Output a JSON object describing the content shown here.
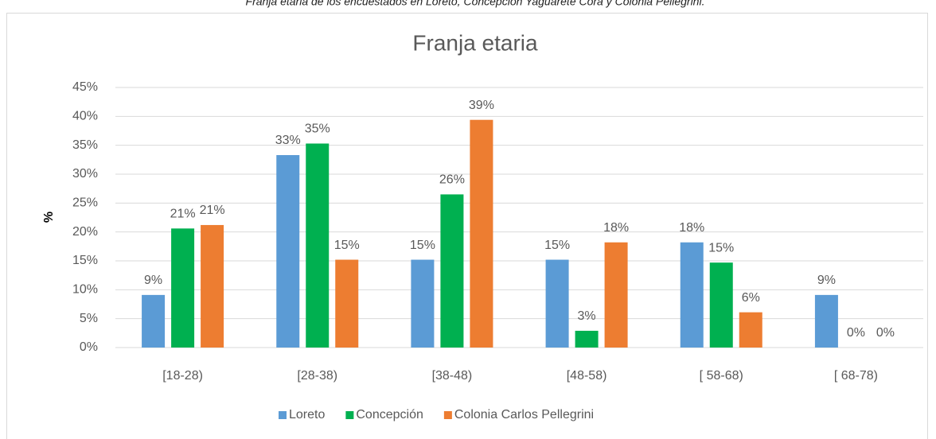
{
  "chart_data": {
    "type": "bar",
    "subtitle": "Franja etaria de los encuestados en Loreto, Concepción Yaguareté Corá y Colonia Pellegrini.",
    "title": "Franja etaria",
    "y_label": "%",
    "categories": [
      "[18-28)",
      "[28-38)",
      "[38-48)",
      "[48-58)",
      "[ 58-68)",
      "[ 68-78)"
    ],
    "series": [
      {
        "name": "Loreto",
        "color": "#5b9bd5",
        "values": [
          9.1,
          33.3,
          15.2,
          15.2,
          18.2,
          9.1
        ],
        "value_labels": [
          "9%",
          "33%",
          "15%",
          "15%",
          "18%",
          "9%"
        ]
      },
      {
        "name": "Concepción",
        "color": "#00b050",
        "values": [
          20.6,
          35.3,
          26.5,
          2.9,
          14.7,
          0
        ],
        "value_labels": [
          "21%",
          "35%",
          "26%",
          "3%",
          "15%",
          "0%"
        ]
      },
      {
        "name": "Colonia Carlos Pellegrini",
        "color": "#ed7d31",
        "values": [
          21.2,
          15.2,
          39.4,
          18.2,
          6.1,
          0
        ],
        "value_labels": [
          "21%",
          "15%",
          "39%",
          "18%",
          "6%",
          "0%"
        ]
      }
    ],
    "ylim": [
      0,
      45
    ],
    "yticks": [
      {
        "value": 0,
        "label": "0%"
      },
      {
        "value": 5,
        "label": "5%"
      },
      {
        "value": 10,
        "label": "10%"
      },
      {
        "value": 15,
        "label": "15%"
      },
      {
        "value": 20,
        "label": "20%"
      },
      {
        "value": 25,
        "label": "25%"
      },
      {
        "value": 30,
        "label": "30%"
      },
      {
        "value": 35,
        "label": "35%"
      },
      {
        "value": 40,
        "label": "40%"
      },
      {
        "value": 45,
        "label": "45%"
      }
    ],
    "grid": true,
    "legend": "bottom"
  }
}
